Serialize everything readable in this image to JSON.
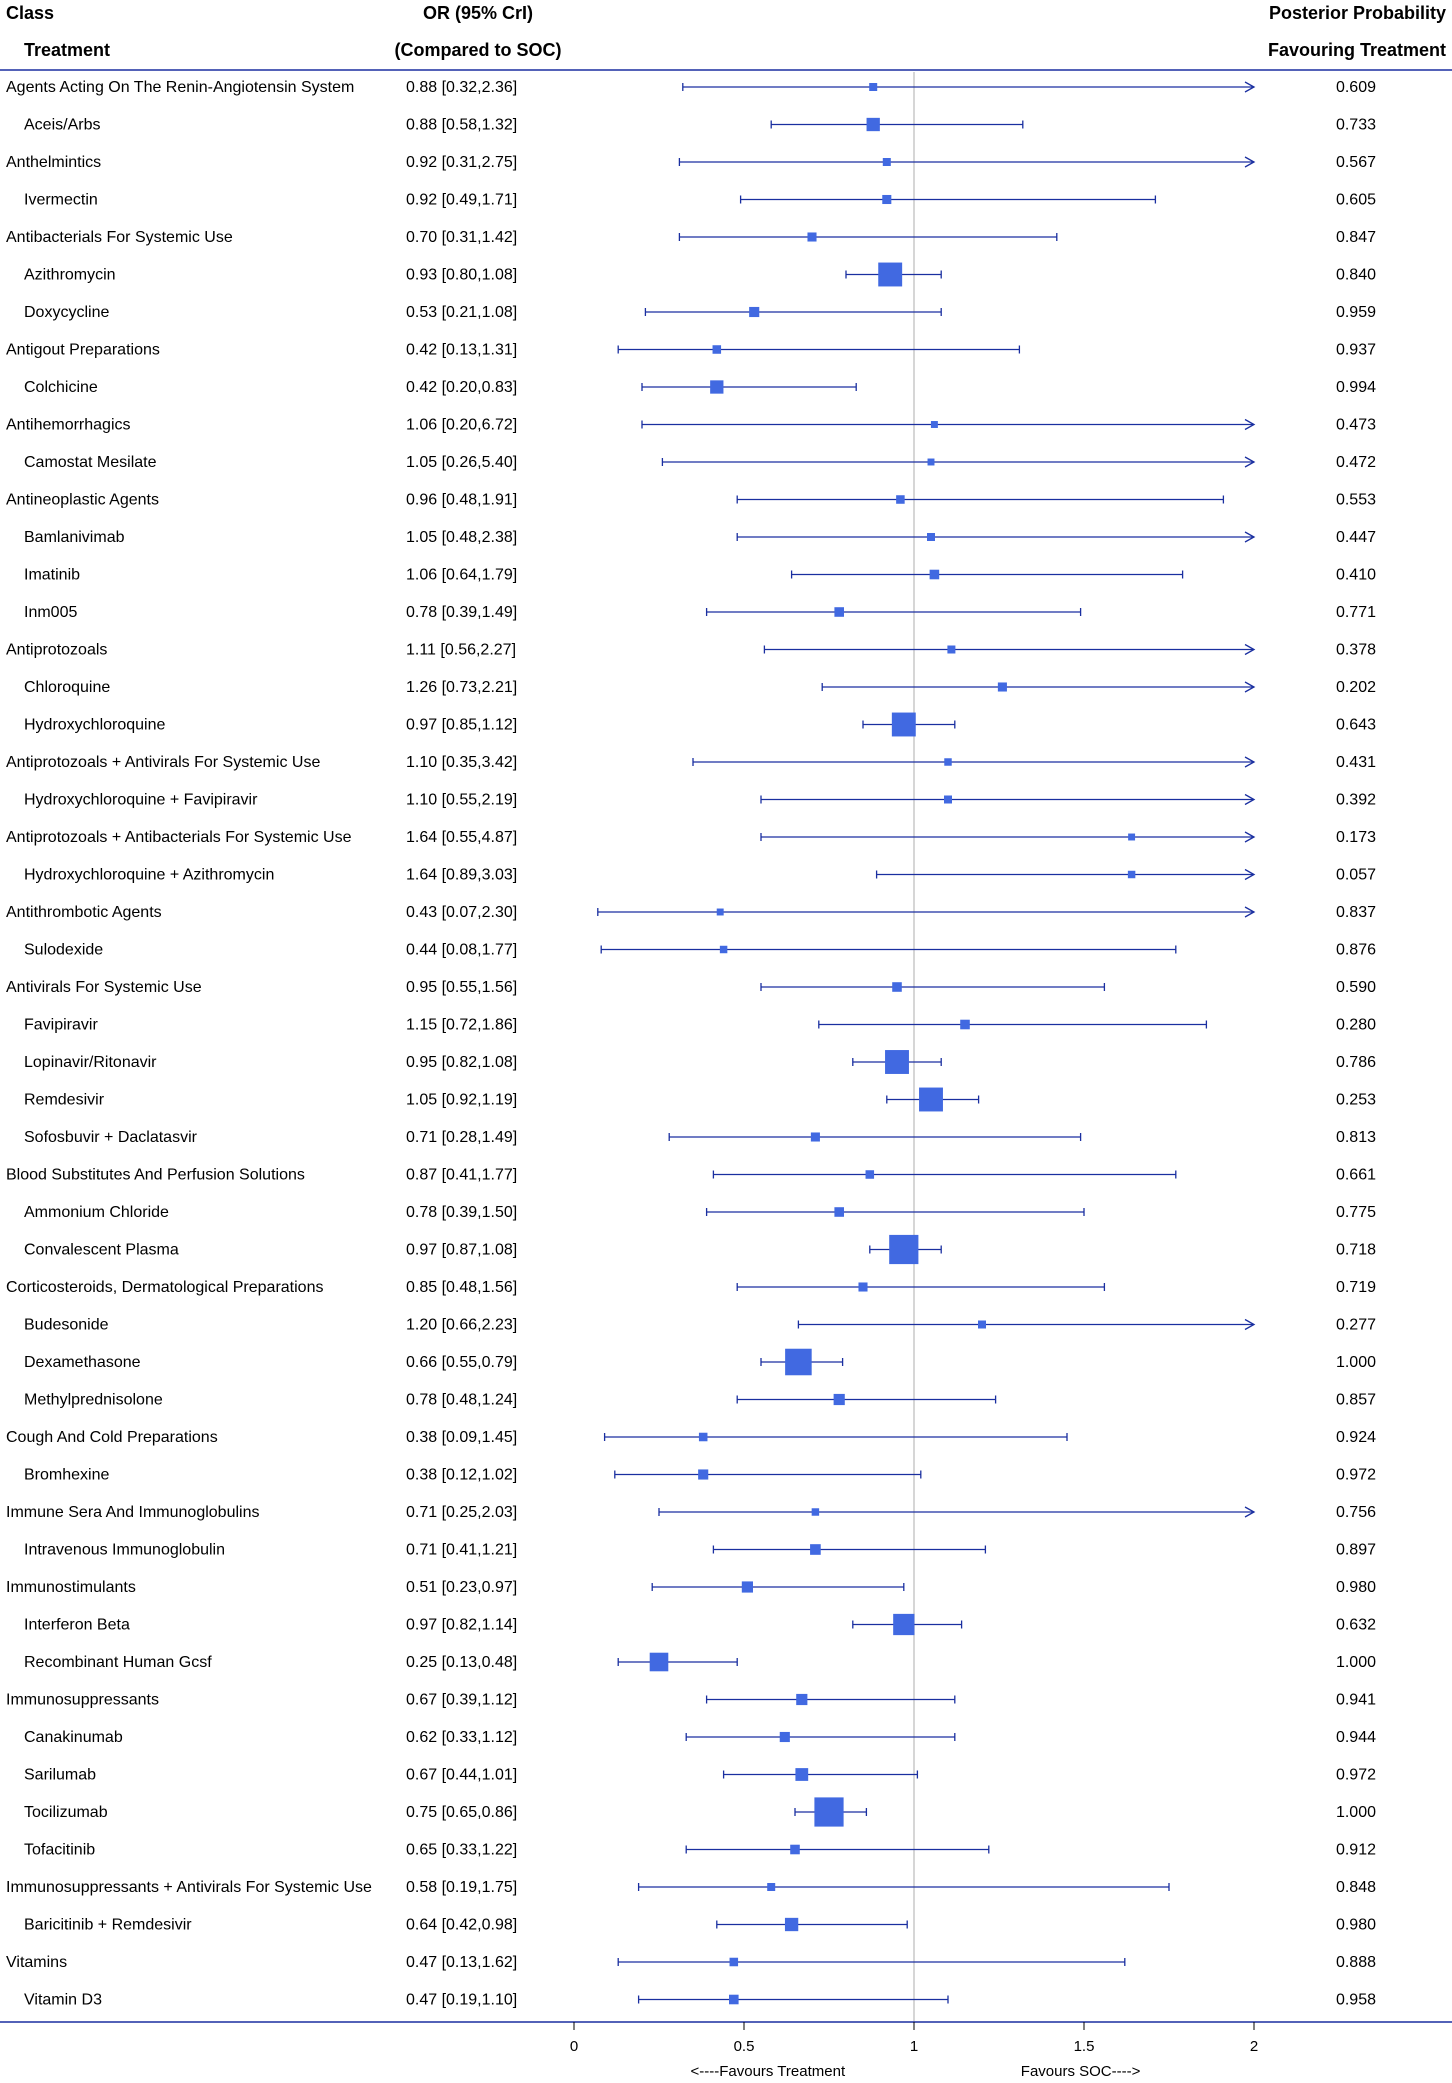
{
  "headers": {
    "class": "Class",
    "treatment": "Treatment",
    "or_line1": "OR (95% CrI)",
    "or_line2": "(Compared to SOC)",
    "prob_line1": "Posterior Probability",
    "prob_line2": "Favouring Treatment"
  },
  "colors": {
    "marker": "#4169E1",
    "line": "#1a2fa0",
    "reference": "#c8c8c8",
    "axis": "#1a2fa0"
  },
  "chart_data": {
    "type": "forest",
    "title": "",
    "xlim": [
      0,
      2
    ],
    "reference_value": 1,
    "xticks": [
      {
        "value": 0,
        "label": "0"
      },
      {
        "value": 0.5,
        "label": "0.5"
      },
      {
        "value": 1,
        "label": "1"
      },
      {
        "value": 1.5,
        "label": "1.5"
      },
      {
        "value": 2,
        "label": "2"
      }
    ],
    "xlabel_left": "<----Favours Treatment",
    "xlabel_right": "Favours SOC---->",
    "rows": [
      {
        "label": "Agents Acting On The Renin-Angiotensin System",
        "level": "class",
        "or": 0.88,
        "lo": 0.32,
        "hi": 2.36,
        "ci_text": "0.88 [0.32,2.36]",
        "prob": "0.609",
        "weight": 1
      },
      {
        "label": "Aceis/Arbs",
        "level": "treatment",
        "or": 0.88,
        "lo": 0.58,
        "hi": 1.32,
        "ci_text": "0.88 [0.58,1.32]",
        "prob": "0.733",
        "weight": 2
      },
      {
        "label": "Anthelmintics",
        "level": "class",
        "or": 0.92,
        "lo": 0.31,
        "hi": 2.75,
        "ci_text": "0.92 [0.31,2.75]",
        "prob": "0.567",
        "weight": 1
      },
      {
        "label": "Ivermectin",
        "level": "treatment",
        "or": 0.92,
        "lo": 0.49,
        "hi": 1.71,
        "ci_text": "0.92 [0.49,1.71]",
        "prob": "0.605",
        "weight": 1.2
      },
      {
        "label": "Antibacterials For Systemic Use",
        "level": "class",
        "or": 0.7,
        "lo": 0.31,
        "hi": 1.42,
        "ci_text": "0.70 [0.31,1.42]",
        "prob": "0.847",
        "weight": 1.2
      },
      {
        "label": "Azithromycin",
        "level": "treatment",
        "or": 0.93,
        "lo": 0.8,
        "hi": 1.08,
        "ci_text": "0.93 [0.80,1.08]",
        "prob": "0.840",
        "weight": 4
      },
      {
        "label": "Doxycycline",
        "level": "treatment",
        "or": 0.53,
        "lo": 0.21,
        "hi": 1.08,
        "ci_text": "0.53 [0.21,1.08]",
        "prob": "0.959",
        "weight": 1.4
      },
      {
        "label": "Antigout Preparations",
        "level": "class",
        "or": 0.42,
        "lo": 0.13,
        "hi": 1.31,
        "ci_text": "0.42 [0.13,1.31]",
        "prob": "0.937",
        "weight": 1.1
      },
      {
        "label": "Colchicine",
        "level": "treatment",
        "or": 0.42,
        "lo": 0.2,
        "hi": 0.83,
        "ci_text": "0.42 [0.20,0.83]",
        "prob": "0.994",
        "weight": 2
      },
      {
        "label": "Antihemorrhagics",
        "level": "class",
        "or": 1.06,
        "lo": 0.2,
        "hi": 6.72,
        "ci_text": "1.06 [0.20,6.72]",
        "prob": "0.473",
        "weight": 0.8
      },
      {
        "label": "Camostat Mesilate",
        "level": "treatment",
        "or": 1.05,
        "lo": 0.26,
        "hi": 5.4,
        "ci_text": "1.05 [0.26,5.40]",
        "prob": "0.472",
        "weight": 0.8
      },
      {
        "label": "Antineoplastic Agents",
        "level": "class",
        "or": 0.96,
        "lo": 0.48,
        "hi": 1.91,
        "ci_text": "0.96 [0.48,1.91]",
        "prob": "0.553",
        "weight": 1.1
      },
      {
        "label": "Bamlanivimab",
        "level": "treatment",
        "or": 1.05,
        "lo": 0.48,
        "hi": 2.38,
        "ci_text": "1.05 [0.48,2.38]",
        "prob": "0.447",
        "weight": 1
      },
      {
        "label": "Imatinib",
        "level": "treatment",
        "or": 1.06,
        "lo": 0.64,
        "hi": 1.79,
        "ci_text": "1.06 [0.64,1.79]",
        "prob": "0.410",
        "weight": 1.3
      },
      {
        "label": "Inm005",
        "level": "treatment",
        "or": 0.78,
        "lo": 0.39,
        "hi": 1.49,
        "ci_text": "0.78 [0.39,1.49]",
        "prob": "0.771",
        "weight": 1.3
      },
      {
        "label": "Antiprotozoals",
        "level": "class",
        "or": 1.11,
        "lo": 0.56,
        "hi": 2.27,
        "ci_text": "1.11 [0.56,2.27]",
        "prob": "0.378",
        "weight": 1
      },
      {
        "label": "Chloroquine",
        "level": "treatment",
        "or": 1.26,
        "lo": 0.73,
        "hi": 2.21,
        "ci_text": "1.26 [0.73,2.21]",
        "prob": "0.202",
        "weight": 1.2
      },
      {
        "label": "Hydroxychloroquine",
        "level": "treatment",
        "or": 0.97,
        "lo": 0.85,
        "hi": 1.12,
        "ci_text": "0.97 [0.85,1.12]",
        "prob": "0.643",
        "weight": 4
      },
      {
        "label": "Antiprotozoals  + Antivirals For Systemic Use",
        "level": "class",
        "or": 1.1,
        "lo": 0.35,
        "hi": 3.42,
        "ci_text": "1.10 [0.35,3.42]",
        "prob": "0.431",
        "weight": 0.9
      },
      {
        "label": "Hydroxychloroquine + Favipiravir",
        "level": "treatment",
        "or": 1.1,
        "lo": 0.55,
        "hi": 2.19,
        "ci_text": "1.10 [0.55,2.19]",
        "prob": "0.392",
        "weight": 1
      },
      {
        "label": "Antiprotozoals + Antibacterials For Systemic Use",
        "level": "class",
        "or": 1.64,
        "lo": 0.55,
        "hi": 4.87,
        "ci_text": "1.64 [0.55,4.87]",
        "prob": "0.173",
        "weight": 0.8
      },
      {
        "label": "Hydroxychloroquine + Azithromycin",
        "level": "treatment",
        "or": 1.64,
        "lo": 0.89,
        "hi": 3.03,
        "ci_text": "1.64 [0.89,3.03]",
        "prob": "0.057",
        "weight": 0.9
      },
      {
        "label": "Antithrombotic Agents",
        "level": "class",
        "or": 0.43,
        "lo": 0.07,
        "hi": 2.3,
        "ci_text": "0.43 [0.07,2.30]",
        "prob": "0.837",
        "weight": 0.8
      },
      {
        "label": "Sulodexide",
        "level": "treatment",
        "or": 0.44,
        "lo": 0.08,
        "hi": 1.77,
        "ci_text": "0.44 [0.08,1.77]",
        "prob": "0.876",
        "weight": 0.9
      },
      {
        "label": "Antivirals For Systemic Use",
        "level": "class",
        "or": 0.95,
        "lo": 0.55,
        "hi": 1.56,
        "ci_text": "0.95 [0.55,1.56]",
        "prob": "0.590",
        "weight": 1.3
      },
      {
        "label": "Favipiravir",
        "level": "treatment",
        "or": 1.15,
        "lo": 0.72,
        "hi": 1.86,
        "ci_text": "1.15 [0.72,1.86]",
        "prob": "0.280",
        "weight": 1.3
      },
      {
        "label": "Lopinavir/Ritonavir",
        "level": "treatment",
        "or": 0.95,
        "lo": 0.82,
        "hi": 1.08,
        "ci_text": "0.95 [0.82,1.08]",
        "prob": "0.786",
        "weight": 4
      },
      {
        "label": "Remdesivir",
        "level": "treatment",
        "or": 1.05,
        "lo": 0.92,
        "hi": 1.19,
        "ci_text": "1.05 [0.92,1.19]",
        "prob": "0.253",
        "weight": 4
      },
      {
        "label": "Sofosbuvir + Daclatasvir",
        "level": "treatment",
        "or": 0.71,
        "lo": 0.28,
        "hi": 1.49,
        "ci_text": "0.71 [0.28,1.49]",
        "prob": "0.813",
        "weight": 1.2
      },
      {
        "label": "Blood Substitutes And Perfusion Solutions",
        "level": "class",
        "or": 0.87,
        "lo": 0.41,
        "hi": 1.77,
        "ci_text": "0.87 [0.41,1.77]",
        "prob": "0.661",
        "weight": 1.1
      },
      {
        "label": "Ammonium Chloride",
        "level": "treatment",
        "or": 0.78,
        "lo": 0.39,
        "hi": 1.5,
        "ci_text": "0.78 [0.39,1.50]",
        "prob": "0.775",
        "weight": 1.3
      },
      {
        "label": "Convalescent Plasma",
        "level": "treatment",
        "or": 0.97,
        "lo": 0.87,
        "hi": 1.08,
        "ci_text": "0.97 [0.87,1.08]",
        "prob": "0.718",
        "weight": 5
      },
      {
        "label": "Corticosteroids, Dermatological Preparations",
        "level": "class",
        "or": 0.85,
        "lo": 0.48,
        "hi": 1.56,
        "ci_text": "0.85 [0.48,1.56]",
        "prob": "0.719",
        "weight": 1.2
      },
      {
        "label": "Budesonide",
        "level": "treatment",
        "or": 1.2,
        "lo": 0.66,
        "hi": 2.23,
        "ci_text": "1.20 [0.66,2.23]",
        "prob": "0.277",
        "weight": 1
      },
      {
        "label": "Dexamethasone",
        "level": "treatment",
        "or": 0.66,
        "lo": 0.55,
        "hi": 0.79,
        "ci_text": "0.66 [0.55,0.79]",
        "prob": "1.000",
        "weight": 4.5
      },
      {
        "label": "Methylprednisolone",
        "level": "treatment",
        "or": 0.78,
        "lo": 0.48,
        "hi": 1.24,
        "ci_text": "0.78 [0.48,1.24]",
        "prob": "0.857",
        "weight": 1.6
      },
      {
        "label": "Cough And Cold Preparations",
        "level": "class",
        "or": 0.38,
        "lo": 0.09,
        "hi": 1.45,
        "ci_text": "0.38 [0.09,1.45]",
        "prob": "0.924",
        "weight": 1.1
      },
      {
        "label": "Bromhexine",
        "level": "treatment",
        "or": 0.38,
        "lo": 0.12,
        "hi": 1.02,
        "ci_text": "0.38 [0.12,1.02]",
        "prob": "0.972",
        "weight": 1.4
      },
      {
        "label": "Immune Sera And Immunoglobulins",
        "level": "class",
        "or": 0.71,
        "lo": 0.25,
        "hi": 2.03,
        "ci_text": "0.71 [0.25,2.03]",
        "prob": "0.756",
        "weight": 0.9
      },
      {
        "label": "Intravenous Immunoglobulin",
        "level": "treatment",
        "or": 0.71,
        "lo": 0.41,
        "hi": 1.21,
        "ci_text": "0.71 [0.41,1.21]",
        "prob": "0.897",
        "weight": 1.5
      },
      {
        "label": "Immunostimulants",
        "level": "class",
        "or": 0.51,
        "lo": 0.23,
        "hi": 0.97,
        "ci_text": "0.51 [0.23,0.97]",
        "prob": "0.980",
        "weight": 1.6
      },
      {
        "label": "Interferon Beta",
        "level": "treatment",
        "or": 0.97,
        "lo": 0.82,
        "hi": 1.14,
        "ci_text": "0.97 [0.82,1.14]",
        "prob": "0.632",
        "weight": 3.5
      },
      {
        "label": "Recombinant Human Gcsf",
        "level": "treatment",
        "or": 0.25,
        "lo": 0.13,
        "hi": 0.48,
        "ci_text": "0.25 [0.13,0.48]",
        "prob": "1.000",
        "weight": 3
      },
      {
        "label": "Immunosuppressants",
        "level": "class",
        "or": 0.67,
        "lo": 0.39,
        "hi": 1.12,
        "ci_text": "0.67 [0.39,1.12]",
        "prob": "0.941",
        "weight": 1.6
      },
      {
        "label": "Canakinumab",
        "level": "treatment",
        "or": 0.62,
        "lo": 0.33,
        "hi": 1.12,
        "ci_text": "0.62 [0.33,1.12]",
        "prob": "0.944",
        "weight": 1.4
      },
      {
        "label": "Sarilumab",
        "level": "treatment",
        "or": 0.67,
        "lo": 0.44,
        "hi": 1.01,
        "ci_text": "0.67 [0.44,1.01]",
        "prob": "0.972",
        "weight": 1.9
      },
      {
        "label": "Tocilizumab",
        "level": "treatment",
        "or": 0.75,
        "lo": 0.65,
        "hi": 0.86,
        "ci_text": "0.75 [0.65,0.86]",
        "prob": "1.000",
        "weight": 5
      },
      {
        "label": "Tofacitinib",
        "level": "treatment",
        "or": 0.65,
        "lo": 0.33,
        "hi": 1.22,
        "ci_text": "0.65 [0.33,1.22]",
        "prob": "0.912",
        "weight": 1.3
      },
      {
        "label": "Immunosuppressants + Antivirals For Systemic Use",
        "level": "class",
        "or": 0.58,
        "lo": 0.19,
        "hi": 1.75,
        "ci_text": "0.58 [0.19,1.75]",
        "prob": "0.848",
        "weight": 1
      },
      {
        "label": "Baricitinib + Remdesivir",
        "level": "treatment",
        "or": 0.64,
        "lo": 0.42,
        "hi": 0.98,
        "ci_text": "0.64 [0.42,0.98]",
        "prob": "0.980",
        "weight": 2
      },
      {
        "label": "Vitamins",
        "level": "class",
        "or": 0.47,
        "lo": 0.13,
        "hi": 1.62,
        "ci_text": "0.47 [0.13,1.62]",
        "prob": "0.888",
        "weight": 1.1
      },
      {
        "label": "Vitamin D3",
        "level": "treatment",
        "or": 0.47,
        "lo": 0.19,
        "hi": 1.1,
        "ci_text": "0.47 [0.19,1.10]",
        "prob": "0.958",
        "weight": 1.3
      }
    ]
  }
}
